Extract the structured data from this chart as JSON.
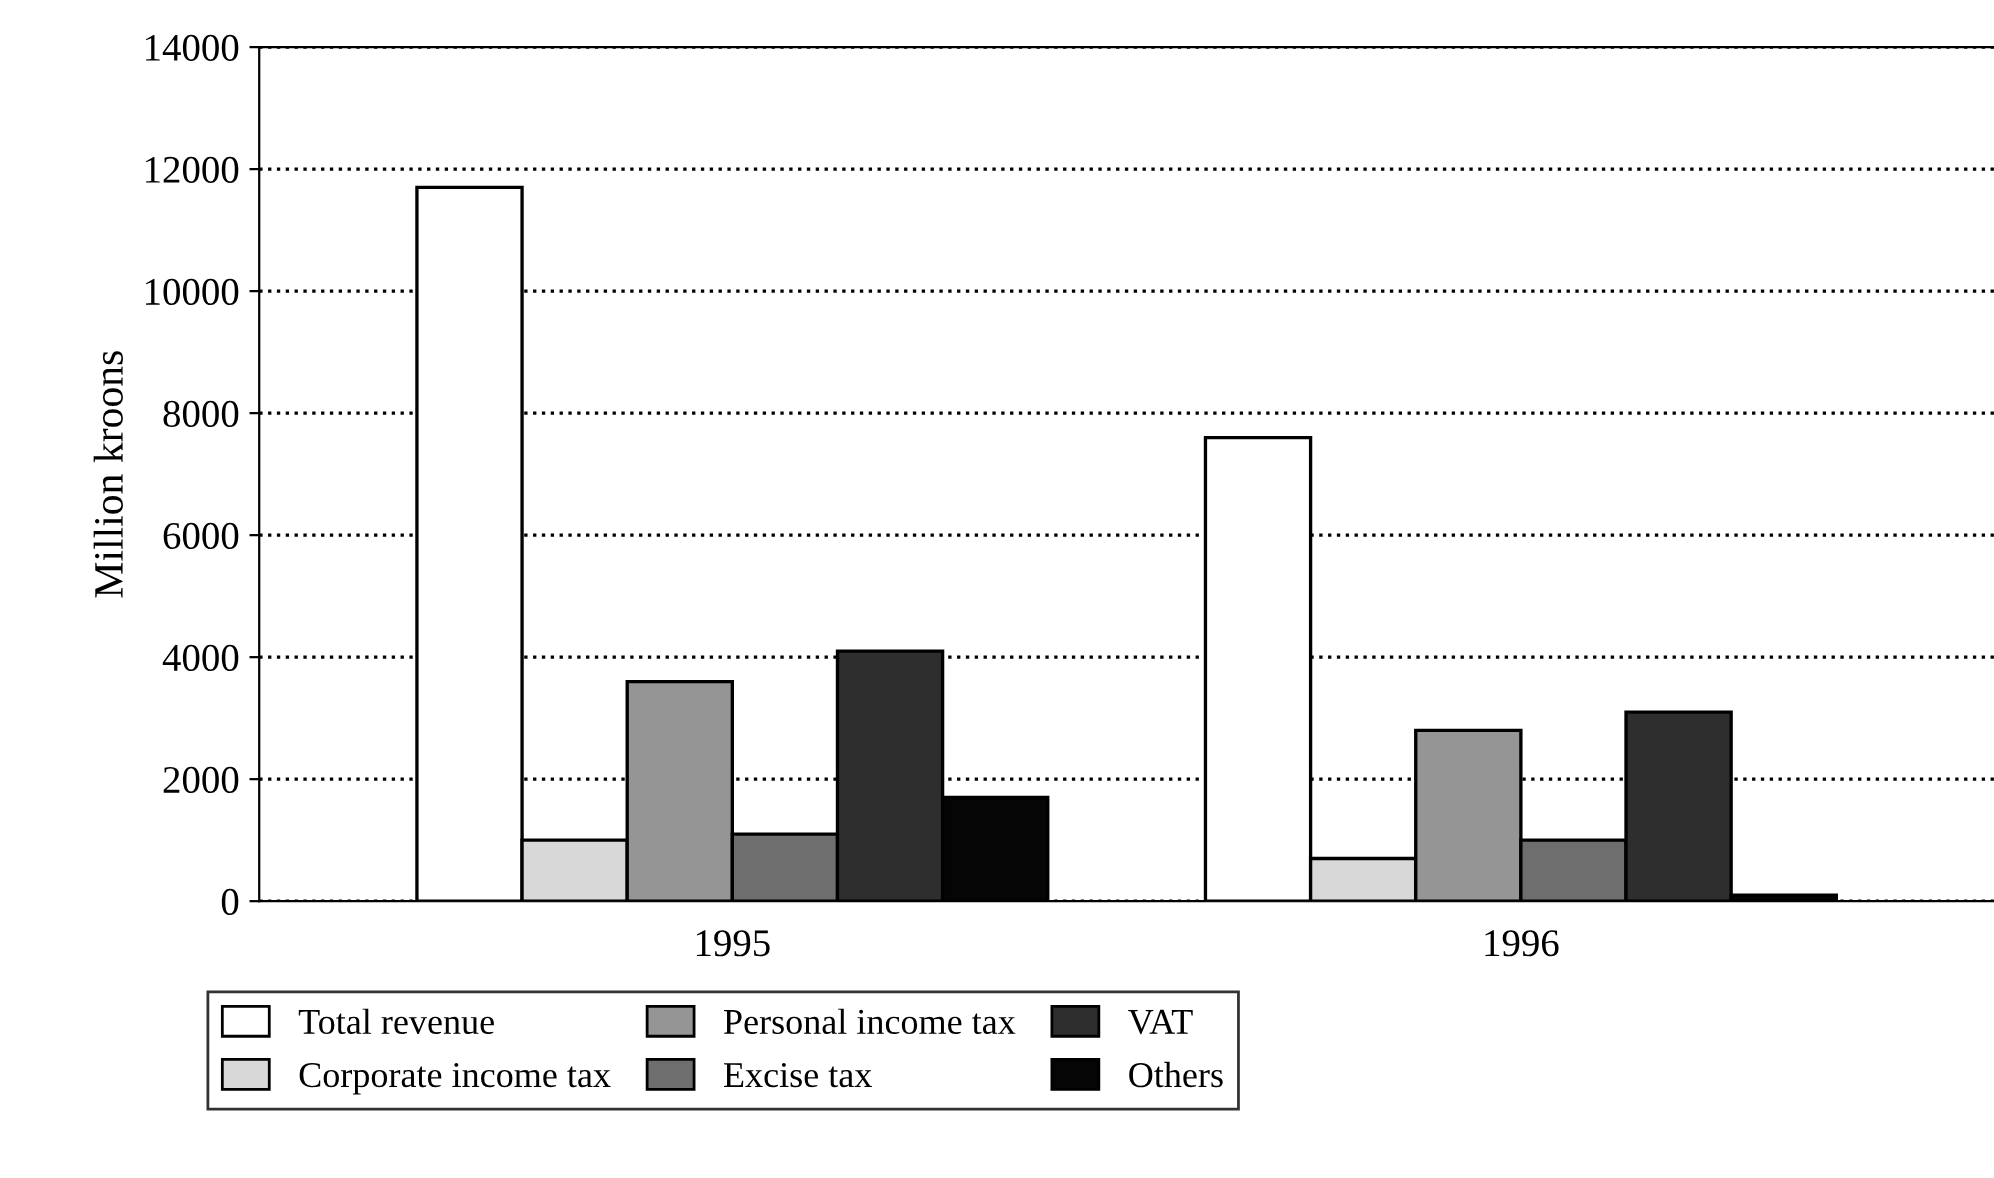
{
  "chart_data": {
    "type": "bar",
    "ylabel": "Million kroons",
    "categories": [
      "1995",
      "1996"
    ],
    "series": [
      {
        "name": "Total revenue",
        "color": "#ffffff",
        "values": [
          11700,
          7600
        ]
      },
      {
        "name": "Corporate income tax",
        "color": "#d8d8d8",
        "values": [
          1000,
          700
        ]
      },
      {
        "name": "Personal income tax",
        "color": "#959595",
        "values": [
          3600,
          2800
        ]
      },
      {
        "name": "Excise tax",
        "color": "#6e6e6e",
        "values": [
          1100,
          1000
        ]
      },
      {
        "name": "VAT",
        "color": "#2e2e2e",
        "values": [
          4100,
          3100
        ]
      },
      {
        "name": "Others",
        "color": "#050505",
        "values": [
          1700,
          100
        ]
      }
    ],
    "ylim": [
      0,
      14000
    ],
    "yticks": [
      0,
      2000,
      4000,
      6000,
      8000,
      10000,
      12000,
      14000
    ],
    "grid": "y",
    "legend": "bottom"
  }
}
